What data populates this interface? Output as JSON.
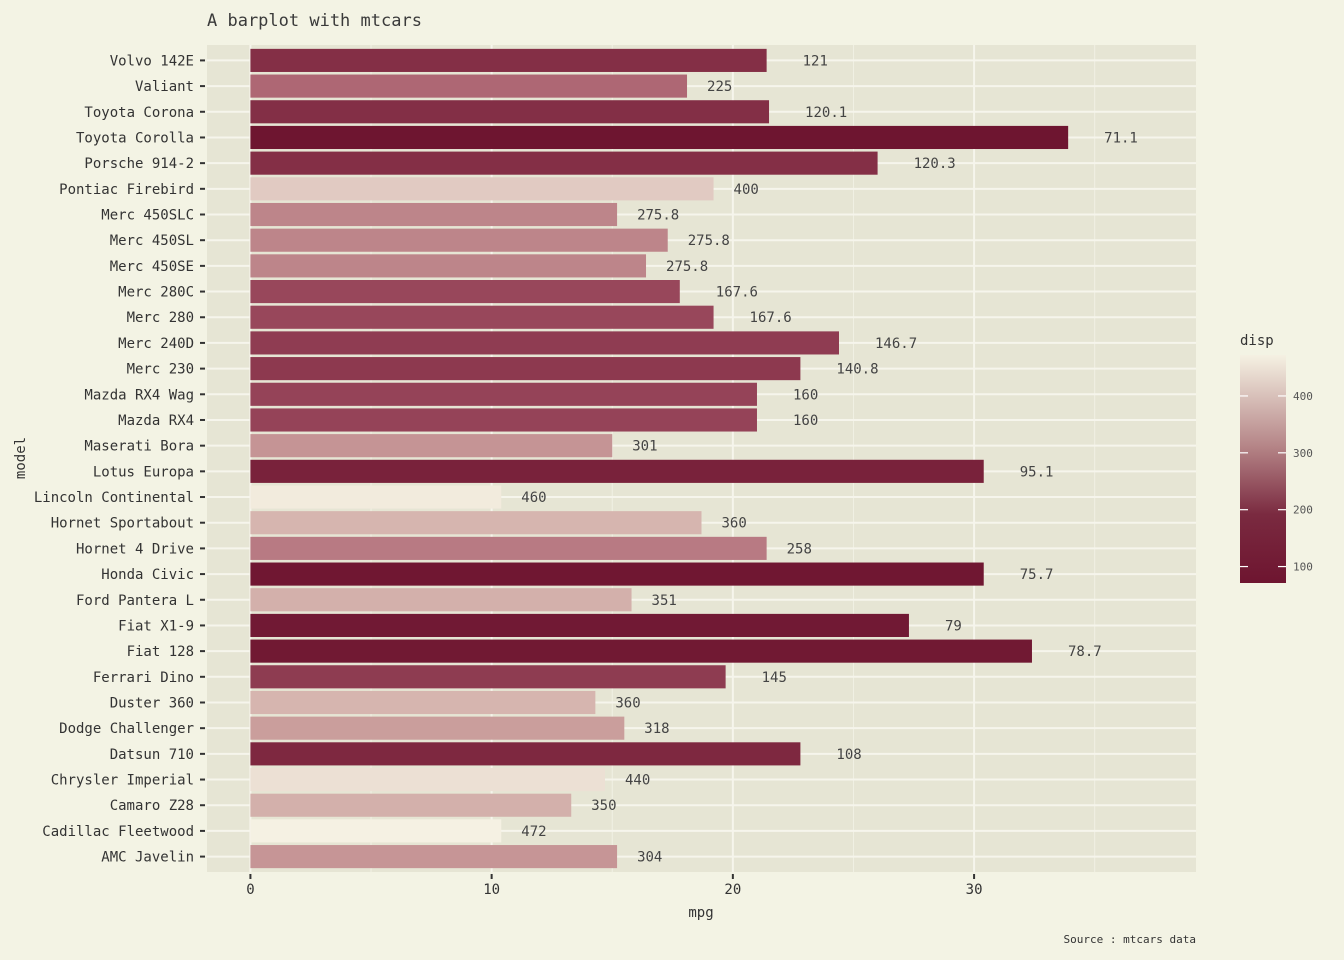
{
  "chart_data": {
    "type": "bar",
    "orientation": "horizontal",
    "title": "A barplot with mtcars",
    "xlabel": "mpg",
    "ylabel": "model",
    "caption": "Source : mtcars data",
    "xlim": [
      -1.8,
      39.2
    ],
    "xticks": [
      0,
      10,
      20,
      30
    ],
    "grid": true,
    "legend": {
      "title": "disp",
      "position": "right",
      "range": [
        71.1,
        472
      ],
      "ticks": [
        100,
        200,
        300,
        400
      ],
      "colors": [
        "#6e1530",
        "#a85a6b",
        "#cfa8a4",
        "#f5f1e3"
      ]
    },
    "categories": [
      "AMC Javelin",
      "Cadillac Fleetwood",
      "Camaro Z28",
      "Chrysler Imperial",
      "Datsun 710",
      "Dodge Challenger",
      "Duster 360",
      "Ferrari Dino",
      "Fiat 128",
      "Fiat X1-9",
      "Ford Pantera L",
      "Honda Civic",
      "Hornet 4 Drive",
      "Hornet Sportabout",
      "Lincoln Continental",
      "Lotus Europa",
      "Maserati Bora",
      "Mazda RX4",
      "Mazda RX4 Wag",
      "Merc 230",
      "Merc 240D",
      "Merc 280",
      "Merc 280C",
      "Merc 450SE",
      "Merc 450SL",
      "Merc 450SLC",
      "Pontiac Firebird",
      "Porsche 914-2",
      "Toyota Corolla",
      "Toyota Corona",
      "Valiant",
      "Volvo 142E"
    ],
    "series": [
      {
        "values": [
          15.2,
          10.4,
          13.3,
          14.7,
          22.8,
          15.5,
          14.3,
          19.7,
          32.4,
          27.3,
          15.8,
          30.4,
          21.4,
          18.7,
          10.4,
          30.4,
          15.0,
          21.0,
          21.0,
          22.8,
          24.4,
          19.2,
          17.8,
          16.4,
          17.3,
          15.2,
          19.2,
          26.0,
          33.9,
          21.5,
          18.1,
          21.4
        ],
        "disp": [
          304,
          472,
          350,
          440,
          108,
          318,
          360,
          145,
          78.7,
          79,
          351,
          75.7,
          258,
          360,
          460,
          95.1,
          301,
          160,
          160,
          140.8,
          146.7,
          167.6,
          167.6,
          275.8,
          275.8,
          275.8,
          400,
          120.3,
          71.1,
          120.1,
          225,
          121
        ],
        "labels": [
          "304",
          "472",
          "350",
          "440",
          "108",
          "318",
          "360",
          "145",
          "78.7",
          "79",
          "351",
          "75.7",
          "258",
          "360",
          "460",
          "95.1",
          "301",
          "160",
          "160",
          "140.8",
          "146.7",
          "167.6",
          "167.6",
          "275.8",
          "275.8",
          "275.8",
          "400",
          "120.3",
          "71.1",
          "120.1",
          "225",
          "121"
        ]
      }
    ]
  }
}
